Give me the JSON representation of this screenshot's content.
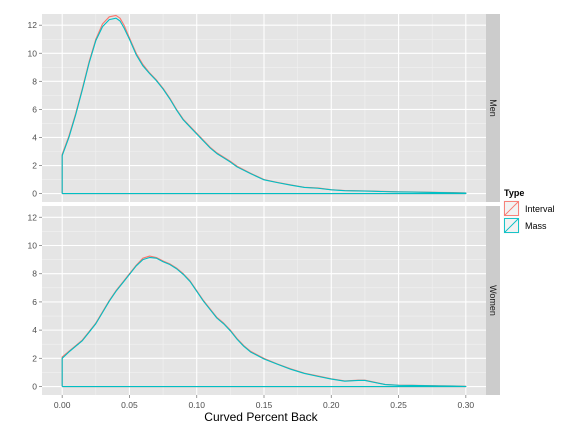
{
  "chart_data": {
    "type": "line",
    "subtype": "density (facetted, no fill)",
    "xlabel": "Curved Percent Back",
    "ylabel": "",
    "xlim": [
      0,
      0.3
    ],
    "ylim": [
      0,
      12.8
    ],
    "x_ticks": [
      0.0,
      0.05,
      0.1,
      0.15,
      0.2,
      0.25,
      0.3
    ],
    "x_tick_labels": [
      "0.00",
      "0.05",
      "0.10",
      "0.15",
      "0.20",
      "0.25",
      "0.30"
    ],
    "y_ticks": [
      0,
      2,
      4,
      6,
      8,
      10,
      12
    ],
    "y_tick_labels": [
      "0",
      "2",
      "4",
      "6",
      "8",
      "10",
      "12"
    ],
    "grid": true,
    "legend": {
      "title": "Type",
      "position": "right",
      "entries": [
        {
          "label": "Interval",
          "color": "#F8766D"
        },
        {
          "label": "Mass",
          "color": "#00BFC4"
        }
      ]
    },
    "panels": [
      {
        "strip": "Men",
        "series": [
          {
            "name": "Interval",
            "color": "#F8766D",
            "x": [
              0.0,
              0.005,
              0.01,
              0.015,
              0.02,
              0.025,
              0.03,
              0.035,
              0.04,
              0.043,
              0.046,
              0.05,
              0.055,
              0.06,
              0.065,
              0.07,
              0.075,
              0.08,
              0.085,
              0.09,
              0.095,
              0.1,
              0.105,
              0.11,
              0.115,
              0.12,
              0.125,
              0.13,
              0.14,
              0.15,
              0.16,
              0.17,
              0.18,
              0.19,
              0.2,
              0.21,
              0.22,
              0.23,
              0.24,
              0.25,
              0.26,
              0.27,
              0.28,
              0.29,
              0.3
            ],
            "y": [
              2.8,
              4.1,
              5.7,
              7.5,
              9.4,
              11.0,
              12.1,
              12.6,
              12.7,
              12.5,
              12.0,
              11.1,
              10.0,
              9.2,
              8.6,
              8.1,
              7.5,
              6.8,
              6.0,
              5.3,
              4.8,
              4.3,
              3.8,
              3.3,
              2.9,
              2.6,
              2.3,
              1.95,
              1.45,
              1.0,
              0.8,
              0.62,
              0.45,
              0.4,
              0.28,
              0.22,
              0.2,
              0.18,
              0.15,
              0.13,
              0.12,
              0.1,
              0.08,
              0.07,
              0.05
            ]
          },
          {
            "name": "Mass",
            "color": "#00BFC4",
            "x": [
              0.0,
              0.005,
              0.01,
              0.015,
              0.02,
              0.025,
              0.03,
              0.035,
              0.04,
              0.043,
              0.046,
              0.05,
              0.055,
              0.06,
              0.065,
              0.07,
              0.075,
              0.08,
              0.085,
              0.09,
              0.095,
              0.1,
              0.105,
              0.11,
              0.115,
              0.12,
              0.125,
              0.13,
              0.14,
              0.15,
              0.16,
              0.17,
              0.18,
              0.19,
              0.2,
              0.21,
              0.22,
              0.23,
              0.24,
              0.25,
              0.26,
              0.27,
              0.28,
              0.29,
              0.3
            ],
            "y": [
              2.7,
              4.0,
              5.6,
              7.4,
              9.3,
              10.9,
              11.9,
              12.4,
              12.5,
              12.3,
              11.8,
              11.0,
              9.9,
              9.1,
              8.55,
              8.05,
              7.45,
              6.75,
              5.95,
              5.25,
              4.75,
              4.25,
              3.75,
              3.25,
              2.85,
              2.55,
              2.25,
              1.9,
              1.42,
              0.98,
              0.78,
              0.6,
              0.44,
              0.38,
              0.27,
              0.21,
              0.19,
              0.17,
              0.14,
              0.12,
              0.11,
              0.09,
              0.07,
              0.06,
              0.04
            ]
          }
        ]
      },
      {
        "strip": "Women",
        "series": [
          {
            "name": "Interval",
            "color": "#F8766D",
            "x": [
              0.0,
              0.005,
              0.01,
              0.015,
              0.02,
              0.025,
              0.03,
              0.035,
              0.04,
              0.045,
              0.05,
              0.055,
              0.06,
              0.065,
              0.07,
              0.075,
              0.08,
              0.085,
              0.09,
              0.095,
              0.1,
              0.105,
              0.11,
              0.115,
              0.12,
              0.125,
              0.13,
              0.135,
              0.14,
              0.15,
              0.16,
              0.17,
              0.18,
              0.19,
              0.2,
              0.21,
              0.22,
              0.225,
              0.23,
              0.24,
              0.25,
              0.26,
              0.27,
              0.28,
              0.29,
              0.3
            ],
            "y": [
              2.1,
              2.5,
              2.9,
              3.3,
              3.9,
              4.5,
              5.3,
              6.1,
              6.8,
              7.4,
              8.0,
              8.6,
              9.1,
              9.25,
              9.15,
              8.9,
              8.7,
              8.4,
              8.0,
              7.5,
              6.8,
              6.1,
              5.5,
              4.9,
              4.5,
              4.0,
              3.4,
              2.9,
              2.5,
              2.0,
              1.6,
              1.25,
              0.95,
              0.75,
              0.55,
              0.4,
              0.45,
              0.45,
              0.35,
              0.15,
              0.1,
              0.09,
              0.07,
              0.05,
              0.04,
              0.02
            ]
          },
          {
            "name": "Mass",
            "color": "#00BFC4",
            "x": [
              0.0,
              0.005,
              0.01,
              0.015,
              0.02,
              0.025,
              0.03,
              0.035,
              0.04,
              0.045,
              0.05,
              0.055,
              0.06,
              0.065,
              0.07,
              0.075,
              0.08,
              0.085,
              0.09,
              0.095,
              0.1,
              0.105,
              0.11,
              0.115,
              0.12,
              0.125,
              0.13,
              0.135,
              0.14,
              0.15,
              0.16,
              0.17,
              0.18,
              0.19,
              0.2,
              0.21,
              0.22,
              0.225,
              0.23,
              0.24,
              0.25,
              0.26,
              0.27,
              0.28,
              0.29,
              0.3
            ],
            "y": [
              2.0,
              2.45,
              2.85,
              3.25,
              3.85,
              4.45,
              5.25,
              6.05,
              6.75,
              7.35,
              7.95,
              8.55,
              9.0,
              9.15,
              9.1,
              8.85,
              8.65,
              8.35,
              7.95,
              7.45,
              6.75,
              6.05,
              5.45,
              4.85,
              4.45,
              3.95,
              3.35,
              2.85,
              2.45,
              1.95,
              1.58,
              1.22,
              0.93,
              0.72,
              0.53,
              0.38,
              0.43,
              0.43,
              0.33,
              0.14,
              0.09,
              0.08,
              0.06,
              0.04,
              0.03,
              0.01
            ]
          }
        ]
      }
    ]
  }
}
